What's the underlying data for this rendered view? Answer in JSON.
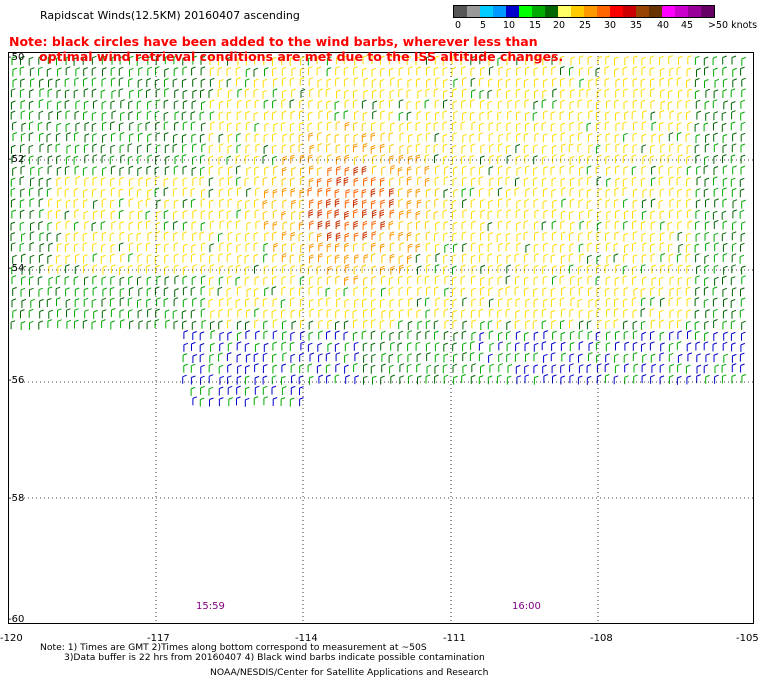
{
  "header": {
    "title": "Rapidscat Winds(12.5KM) 20160407 ascending",
    "note_line1": "Note: black circles have been added to the wind barbs, wherever less than",
    "note_line2": "optimal wind retrieval conditions are met due to the ISS altitude changes."
  },
  "legend": {
    "colors": [
      "#555555",
      "#999999",
      "#00ccff",
      "#0099ff",
      "#0000cc",
      "#00ff00",
      "#00aa00",
      "#006600",
      "#ffff66",
      "#ffcc00",
      "#ff9900",
      "#ff6600",
      "#ff0000",
      "#cc0000",
      "#994400",
      "#663300",
      "#ff00ff",
      "#cc00cc",
      "#990099",
      "#660066"
    ],
    "labels": [
      "0",
      "5",
      "10",
      "15",
      "20",
      "25",
      "30",
      "35",
      "40",
      "45",
      ">50 knots"
    ]
  },
  "map": {
    "lat_labels": [
      "-50",
      "-52",
      "-54",
      "-56",
      "-58",
      "-60"
    ],
    "lon_labels": [
      "-120",
      "-117",
      "-114",
      "-111",
      "-108",
      "-105"
    ],
    "time_labels": [
      "15:59",
      "16:00"
    ]
  },
  "footer": {
    "notes_line1": "Note: 1) Times are GMT 2)Times along bottom correspond to measurement at ~50S",
    "notes_line2": "3)Data buffer is 22 hrs from 20160407 4) Black wind barbs indicate possible contamination",
    "credit": "NOAA/NESDIS/Center for Satellite Applications and Research"
  },
  "colors": {
    "warning": "#ff0000",
    "time": "#800080",
    "grid": "#000000"
  }
}
